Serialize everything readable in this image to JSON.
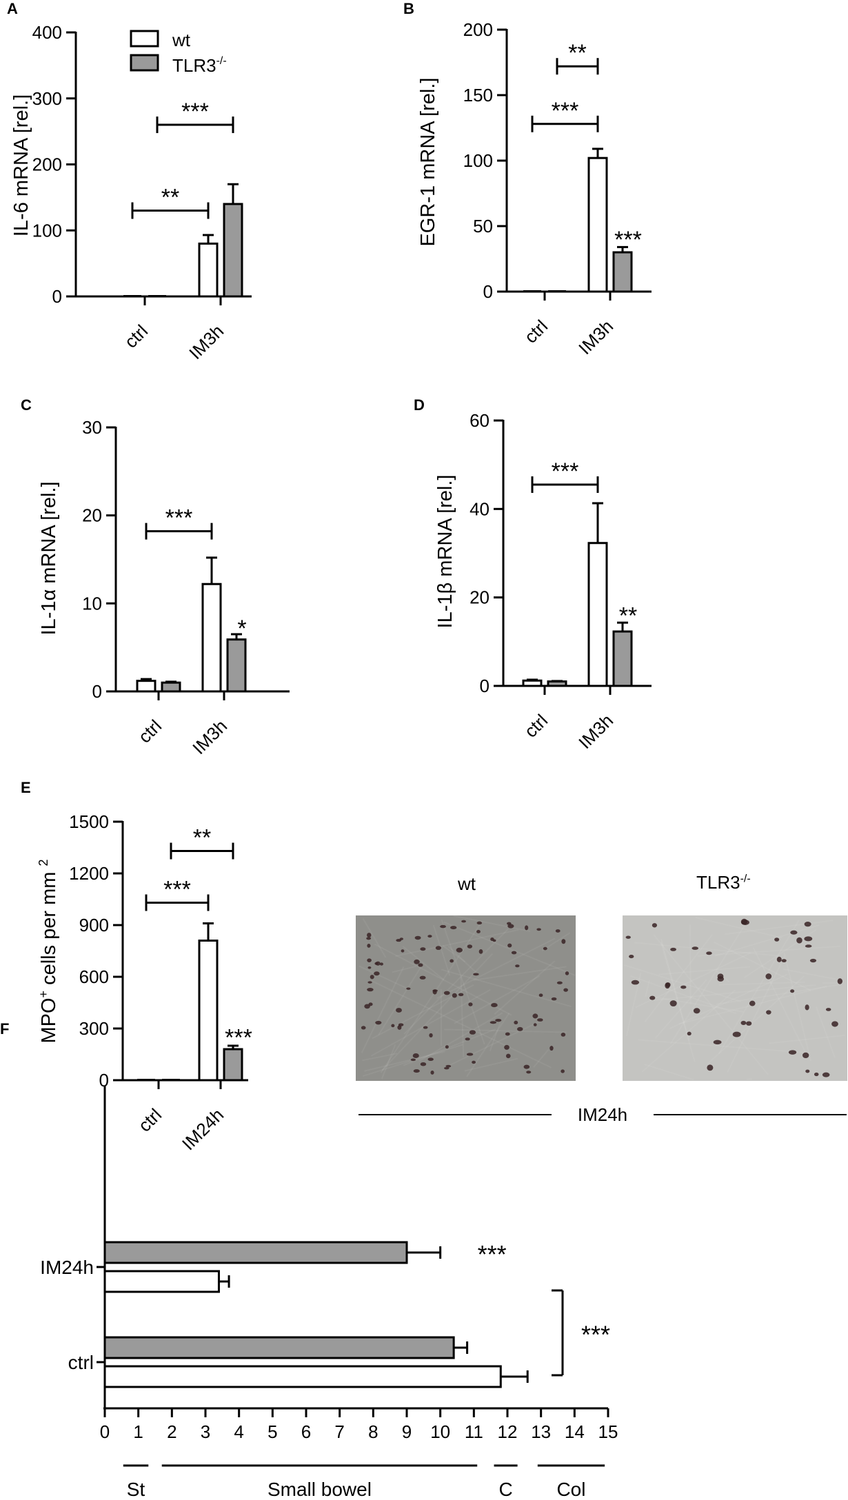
{
  "colors": {
    "wt": "#ffffff",
    "tlr3": "#9a9a9a",
    "stroke": "#000000",
    "photo_wt_bg": "#8f8f8b",
    "photo_tlr3_bg": "#c4c4c1",
    "cell": "#3a2426"
  },
  "legend": {
    "wt": "wt",
    "tlr3_base": "TLR3",
    "tlr3_sup": "-/-"
  },
  "chart_data": [
    {
      "id": "A",
      "panel_label": "A",
      "type": "bar",
      "ylabel": "IL-6 mRNA [rel.]",
      "yticks": [
        "0",
        "100",
        "200",
        "300",
        "400"
      ],
      "ylim": [
        0,
        400
      ],
      "categories": [
        "ctrl",
        "IM3h"
      ],
      "series": [
        {
          "name": "wt",
          "values": [
            1,
            80
          ],
          "errors": [
            0,
            13
          ]
        },
        {
          "name": "TLR3-/-",
          "values": [
            1,
            140
          ],
          "errors": [
            0,
            30
          ]
        }
      ],
      "significance": [
        {
          "text": "**",
          "type": "bracket",
          "from": "ctrl-wt",
          "to": "IM3h-wt",
          "y": 130
        },
        {
          "text": "***",
          "type": "bracket",
          "from": "ctrl-tlr3",
          "to": "IM3h-tlr3",
          "y": 260
        }
      ]
    },
    {
      "id": "B",
      "panel_label": "B",
      "type": "bar",
      "ylabel": "EGR-1 mRNA [rel.]",
      "yticks": [
        "0",
        "50",
        "100",
        "150",
        "200"
      ],
      "ylim": [
        0,
        200
      ],
      "categories": [
        "ctrl",
        "IM3h"
      ],
      "series": [
        {
          "name": "wt",
          "values": [
            1,
            102
          ],
          "errors": [
            0,
            7
          ]
        },
        {
          "name": "TLR3-/-",
          "values": [
            1,
            30
          ],
          "errors": [
            0,
            4
          ]
        }
      ],
      "significance": [
        {
          "text": "***",
          "type": "bracket",
          "from": "ctrl-wt",
          "to": "IM3h-wt",
          "y": 128
        },
        {
          "text": "**",
          "type": "bracket",
          "from": "ctrl-tlr3",
          "to": "IM3h-wt",
          "y": 172
        },
        {
          "text": "***",
          "type": "star",
          "on": "IM3h-tlr3",
          "y": 40
        }
      ]
    },
    {
      "id": "C",
      "panel_label": "C",
      "type": "bar",
      "ylabel": "IL-1α mRNA [rel.]",
      "yticks": [
        "0",
        "10",
        "20",
        "30"
      ],
      "ylim": [
        0,
        30
      ],
      "categories": [
        "ctrl",
        "IM3h"
      ],
      "series": [
        {
          "name": "wt",
          "values": [
            1.2,
            12.2
          ],
          "errors": [
            0.2,
            3
          ]
        },
        {
          "name": "TLR3-/-",
          "values": [
            1.0,
            5.9
          ],
          "errors": [
            0.1,
            0.6
          ]
        }
      ],
      "significance": [
        {
          "text": "***",
          "type": "bracket",
          "from": "ctrl-wt",
          "to": "IM3h-wt",
          "y": 18.2
        },
        {
          "text": "*",
          "type": "star",
          "on": "IM3h-tlr3",
          "y": 7.2
        }
      ]
    },
    {
      "id": "D",
      "panel_label": "D",
      "type": "bar",
      "ylabel": "IL-1β mRNA [rel.]",
      "yticks": [
        "0",
        "20",
        "40",
        "60"
      ],
      "ylim": [
        0,
        60
      ],
      "categories": [
        "ctrl",
        "IM3h"
      ],
      "series": [
        {
          "name": "wt",
          "values": [
            1.2,
            32.3
          ],
          "errors": [
            0.2,
            9
          ]
        },
        {
          "name": "TLR3-/-",
          "values": [
            1.0,
            12.3
          ],
          "errors": [
            0.1,
            2
          ]
        }
      ],
      "significance": [
        {
          "text": "***",
          "type": "bracket",
          "from": "ctrl-wt",
          "to": "IM3h-wt",
          "y": 45.5
        },
        {
          "text": "**",
          "type": "star",
          "on": "IM3h-tlr3",
          "y": 16
        }
      ]
    },
    {
      "id": "E",
      "panel_label": "E",
      "type": "bar",
      "ylabel": "MPO+ cells per mm 2",
      "ylabel_parts": {
        "a": "MPO",
        "sup1": "+",
        "b": " cells per mm ",
        "sup2": "2"
      },
      "yticks": [
        "0",
        "300",
        "600",
        "900",
        "1200",
        "1500"
      ],
      "ylim": [
        0,
        1500
      ],
      "categories": [
        "ctrl",
        "IM24h"
      ],
      "series": [
        {
          "name": "wt",
          "values": [
            5,
            810
          ],
          "errors": [
            0,
            100
          ]
        },
        {
          "name": "TLR3-/-",
          "values": [
            0,
            180
          ],
          "errors": [
            0,
            20
          ]
        }
      ],
      "significance": [
        {
          "text": "***",
          "type": "bracket",
          "from": "ctrl-wt",
          "to": "IM24h-wt",
          "y": 1030
        },
        {
          "text": "**",
          "type": "bracket",
          "from": "ctrl-tlr3",
          "to": "IM24h-tlr3",
          "y": 1330
        },
        {
          "text": "***",
          "type": "star",
          "on": "IM24h-tlr3",
          "y": 250
        }
      ]
    },
    {
      "id": "F",
      "panel_label": "F",
      "type": "bar",
      "orientation": "horizontal",
      "xticks": [
        "0",
        "1",
        "2",
        "3",
        "4",
        "5",
        "6",
        "7",
        "8",
        "9",
        "10",
        "11",
        "12",
        "13",
        "14",
        "15"
      ],
      "xlim": [
        0,
        15
      ],
      "categories": [
        "IM24h",
        "ctrl"
      ],
      "series": [
        {
          "name": "TLR3-/-",
          "values": [
            9.0,
            10.4
          ],
          "errors": [
            1.0,
            0.4
          ]
        },
        {
          "name": "wt",
          "values": [
            3.4,
            11.8
          ],
          "errors": [
            0.3,
            0.8
          ]
        }
      ],
      "significance": [
        {
          "text": "***",
          "type": "star",
          "on": "IM24h-tlr3"
        },
        {
          "text": "***",
          "type": "bracket",
          "from": "IM24h-wt",
          "to": "ctrl-wt"
        }
      ],
      "regions": [
        {
          "label": "St",
          "from": 0.55,
          "to": 1.3
        },
        {
          "label": "Small bowel",
          "from": 1.7,
          "to": 11.1
        },
        {
          "label": "C",
          "from": 11.6,
          "to": 12.3
        },
        {
          "label": "Col",
          "from": 12.9,
          "to": 14.9
        }
      ]
    }
  ],
  "photos": {
    "wt_title": "wt",
    "tlr3_title_base": "TLR3",
    "tlr3_title_sup": "-/-",
    "caption": "IM24h"
  }
}
